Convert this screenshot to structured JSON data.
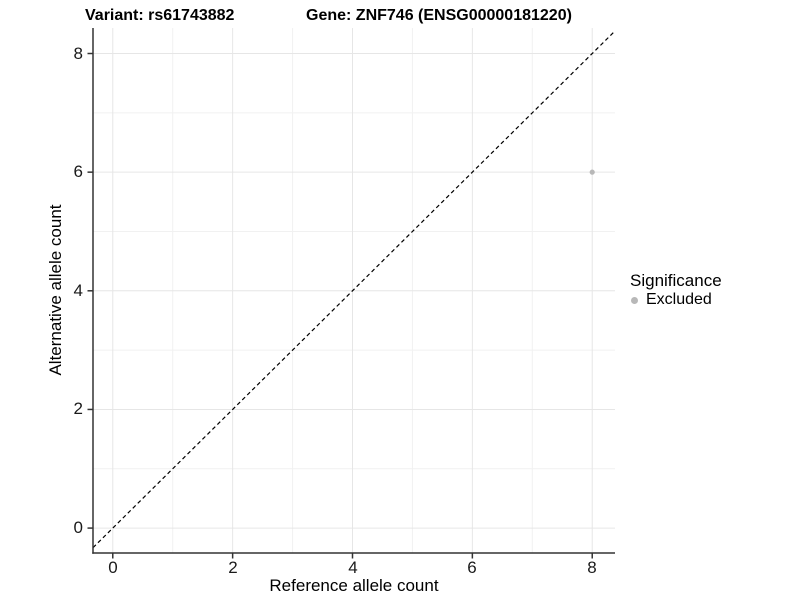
{
  "title": {
    "variant": "Variant: rs61743882",
    "gene": "Gene: ZNF746 (ENSG00000181220)"
  },
  "axes": {
    "x": {
      "title": "Reference allele count",
      "tick_labels": [
        "0",
        "2",
        "4",
        "6",
        "8"
      ]
    },
    "y": {
      "title": "Alternative allele count",
      "tick_labels": [
        "0",
        "2",
        "4",
        "6",
        "8"
      ]
    }
  },
  "legend": {
    "title": "Significance",
    "items": [
      {
        "label": "Excluded",
        "color": "#b8b8b8",
        "marker": "dot-icon"
      }
    ]
  },
  "chart_data": {
    "type": "scatter",
    "title": "Variant: rs61743882 | Gene: ZNF746 (ENSG00000181220)",
    "xlabel": "Reference allele count",
    "ylabel": "Alternative allele count",
    "xlim": [
      -0.33,
      8.38
    ],
    "ylim": [
      -0.42,
      8.43
    ],
    "x_major_ticks": [
      0,
      2,
      4,
      6,
      8
    ],
    "y_major_ticks": [
      0,
      2,
      4,
      6,
      8
    ],
    "x_minor_ticks": [
      1,
      3,
      5,
      7
    ],
    "y_minor_ticks": [
      1,
      3,
      5,
      7
    ],
    "grid": true,
    "legend_position": "right",
    "series": [
      {
        "name": "Excluded",
        "color": "#b8b8b8",
        "points": [
          [
            8,
            6
          ]
        ],
        "point_radius": 2.6
      }
    ],
    "reference_line": {
      "slope": 1,
      "intercept": 0,
      "style": "dashed",
      "color": "#000000"
    }
  },
  "colors": {
    "background": "#ffffff",
    "grid_major": "#e6e6e6",
    "grid_minor": "#f1f1f1",
    "axis_line": "#333333",
    "tick_mark": "#333333",
    "point": "#b8b8b8"
  }
}
